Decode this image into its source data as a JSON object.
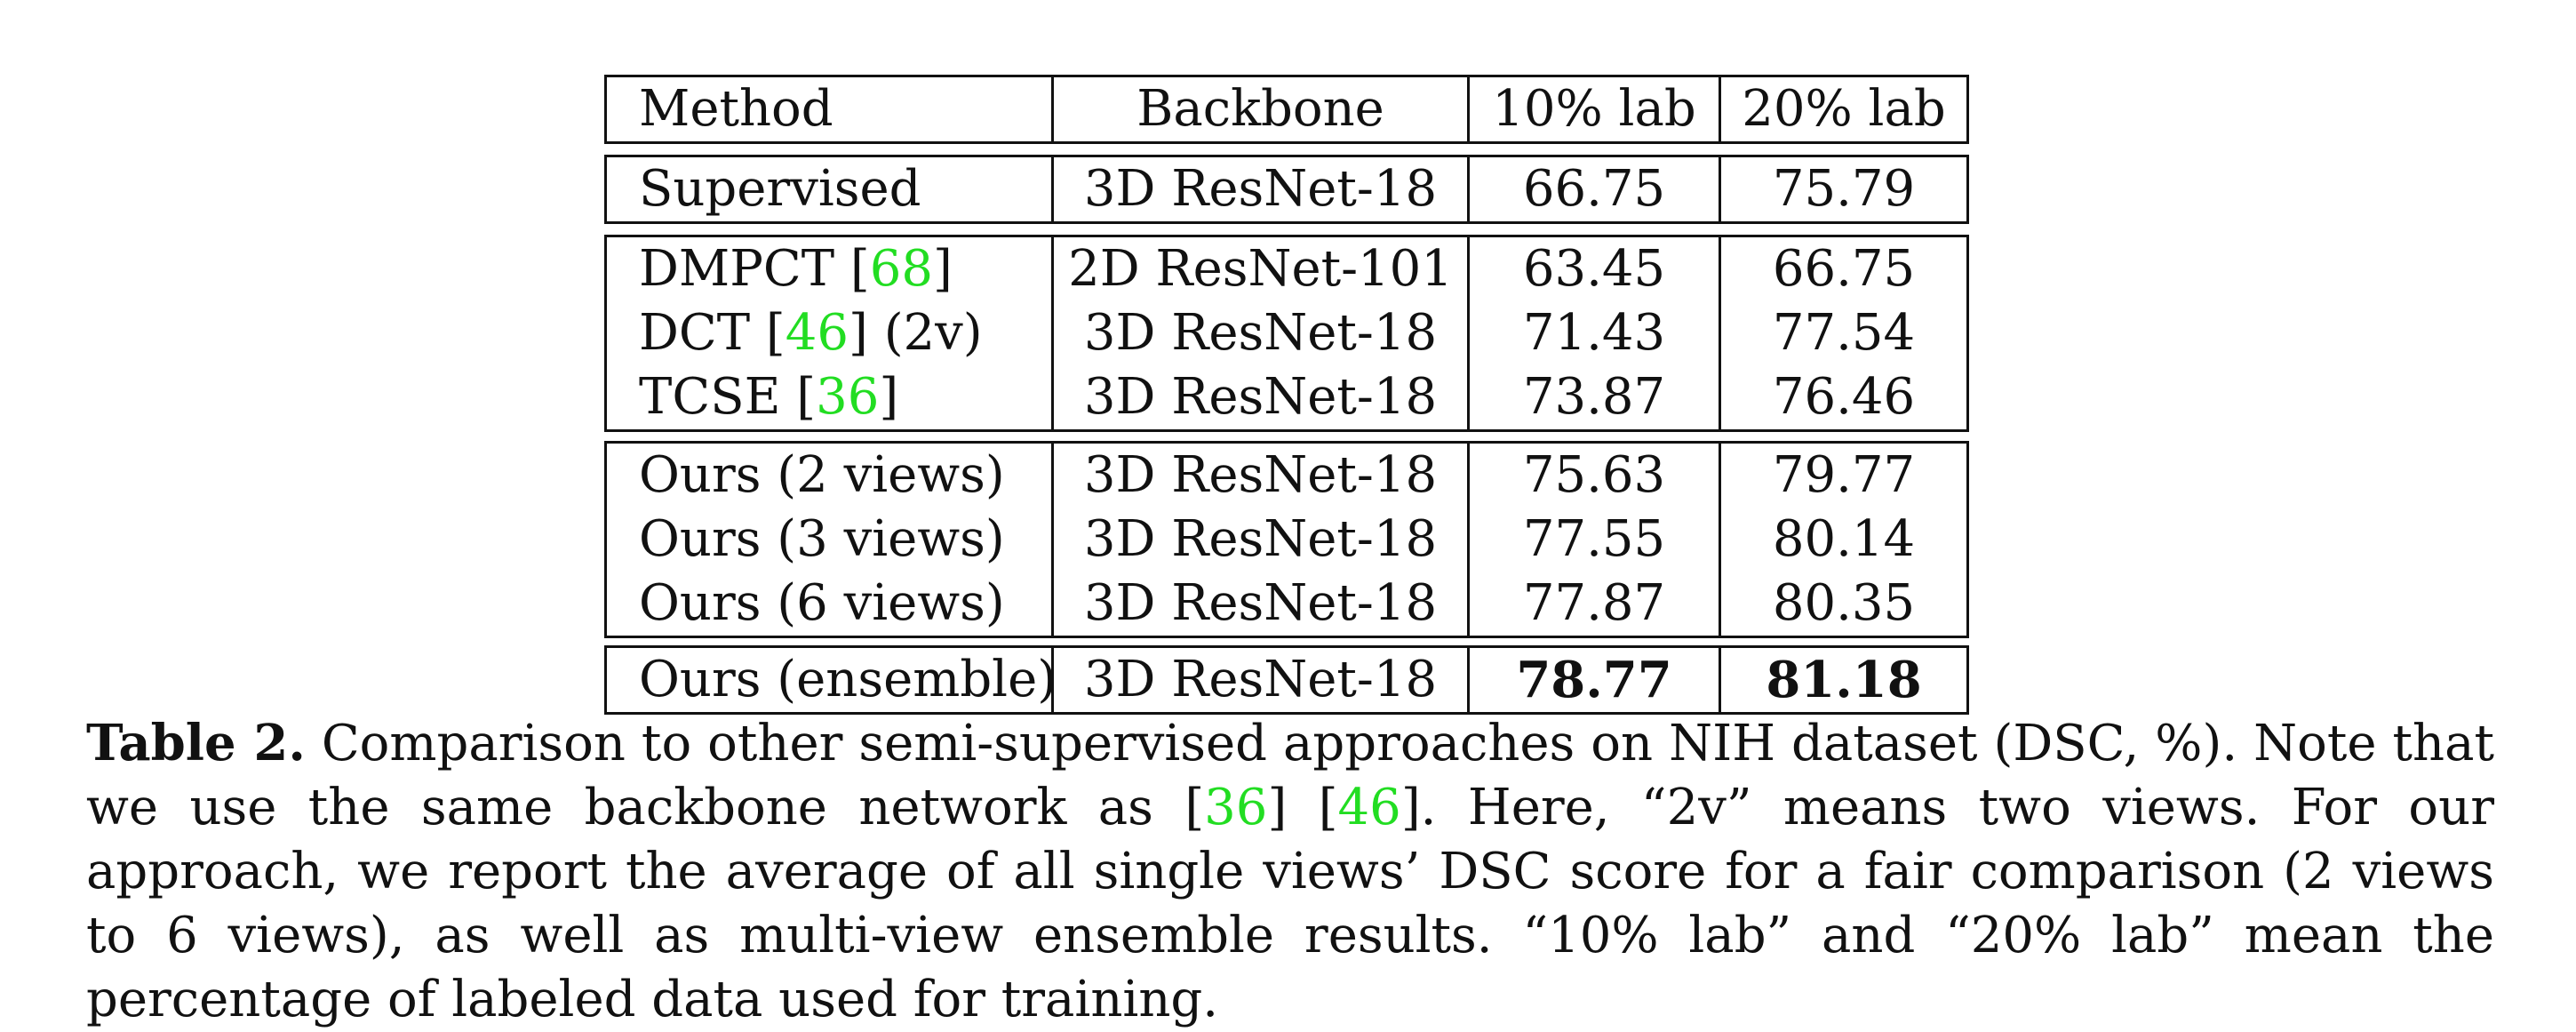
{
  "table": {
    "header": {
      "method": "Method",
      "backbone": "Backbone",
      "lab10": "10% lab",
      "lab20": "20% lab"
    },
    "supervised": [
      {
        "method": "Supervised",
        "backbone": "3D ResNet-18",
        "lab10": "66.75",
        "lab20": "75.79"
      }
    ],
    "others": [
      {
        "method": "DMPCT",
        "ref": "68",
        "suffix": "",
        "backbone": "2D ResNet-101",
        "lab10": "63.45",
        "lab20": "66.75"
      },
      {
        "method": "DCT",
        "ref": "46",
        "suffix": " (2v)",
        "backbone": "3D ResNet-18",
        "lab10": "71.43",
        "lab20": "77.54"
      },
      {
        "method": "TCSE",
        "ref": "36",
        "suffix": "",
        "backbone": "3D ResNet-18",
        "lab10": "73.87",
        "lab20": "76.46"
      }
    ],
    "ours": [
      {
        "method": "Ours (2 views)",
        "backbone": "3D ResNet-18",
        "lab10": "75.63",
        "lab20": "79.77"
      },
      {
        "method": "Ours (3 views)",
        "backbone": "3D ResNet-18",
        "lab10": "77.55",
        "lab20": "80.14"
      },
      {
        "method": "Ours (6 views)",
        "backbone": "3D ResNet-18",
        "lab10": "77.87",
        "lab20": "80.35"
      }
    ],
    "ensemble": [
      {
        "method": "Ours (ensemble)",
        "backbone": "3D ResNet-18",
        "lab10": "78.77",
        "lab20": "81.18"
      }
    ]
  },
  "caption": {
    "label": "Table 2.",
    "text_1": " Comparison to other semi-supervised approaches on NIH dataset (DSC, %). Note that we use the same backbone network as ",
    "ref_a": "36",
    "text_2": " ",
    "ref_b": "46",
    "text_3": ". Here, “2v” means two views. For our approach, we report the average of all single views’ DSC score for a fair comparison (2 views to 6 views), as well as multi-view ensemble results. “10% lab” and “20% lab” mean the percentage of labeled data used for training."
  },
  "colors": {
    "citation": "#22dd22",
    "text": "#111111",
    "rule": "#111111"
  }
}
